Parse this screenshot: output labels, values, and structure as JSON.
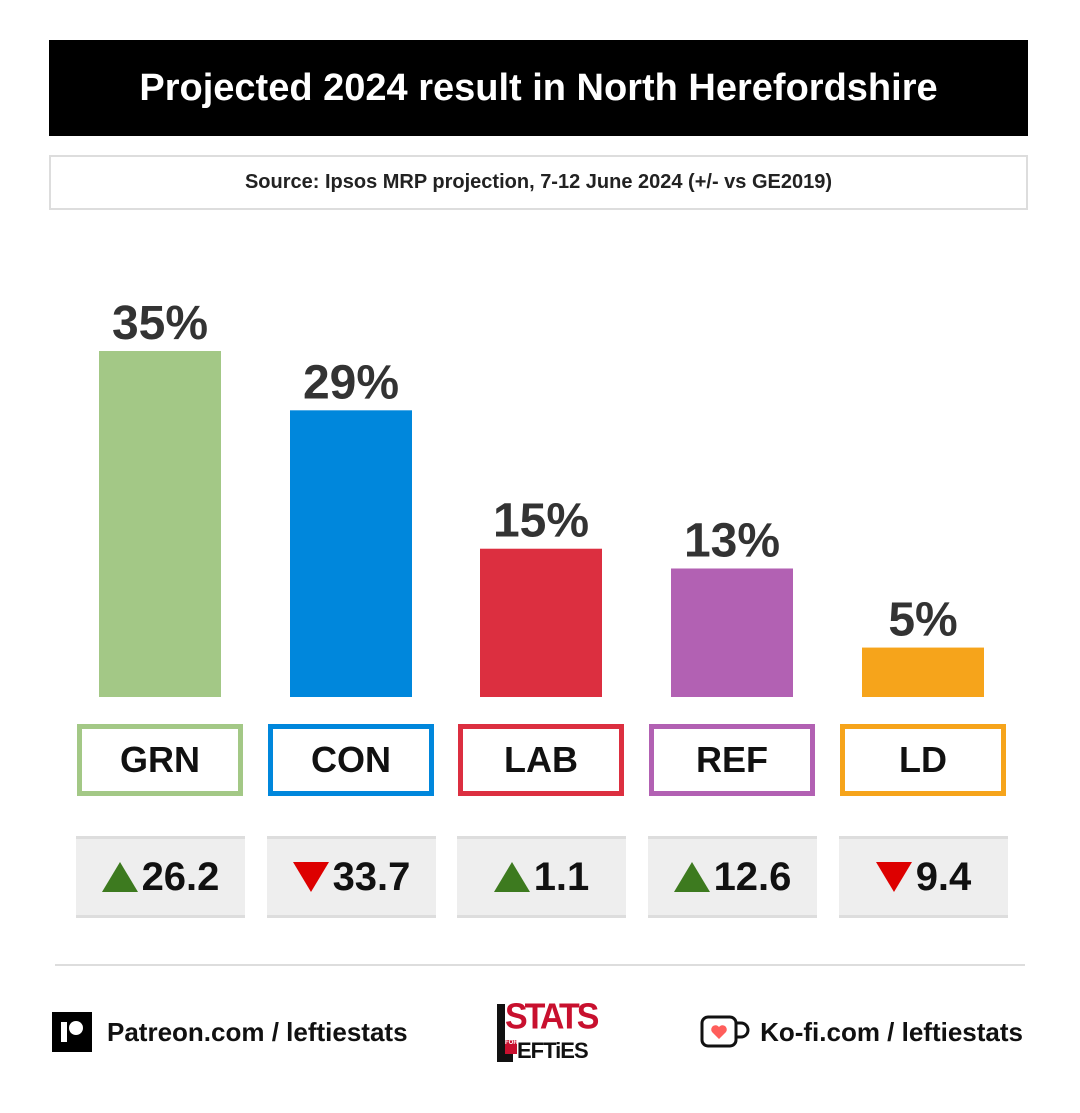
{
  "title": "Projected 2024 result in North Herefordshire",
  "source": "Source: Ipsos MRP projection, 7-12 June 2024 (+/- vs GE2019)",
  "chart_data": {
    "type": "bar",
    "title": "Projected 2024 result in North Herefordshire",
    "categories": [
      "GRN",
      "CON",
      "LAB",
      "REF",
      "LD"
    ],
    "values": [
      35,
      29,
      15,
      13,
      5
    ],
    "value_labels": [
      "35%",
      "29%",
      "15%",
      "13%",
      "5%"
    ],
    "colors": [
      "#a3c886",
      "#0087dc",
      "#dc2f40",
      "#b261b3",
      "#f6a41b"
    ],
    "changes": [
      {
        "direction": "up",
        "label": "26.2",
        "value": 26.2
      },
      {
        "direction": "down",
        "label": "33.7",
        "value": -33.7
      },
      {
        "direction": "up",
        "label": "1.1",
        "value": 1.1
      },
      {
        "direction": "up",
        "label": "12.6",
        "value": 12.6
      },
      {
        "direction": "down",
        "label": "9.4",
        "value": -9.4
      }
    ],
    "grid": false,
    "legend": "none"
  },
  "footer": {
    "patreon_icon": "patreon-icon",
    "patreon": "Patreon.com / leftiestats",
    "logo_top": "STATS",
    "logo_small": "FOR",
    "logo_bottom": "EFTiES",
    "kofi_icon": "kofi-cup-icon",
    "kofi": "Ko-fi.com / leftiestats"
  }
}
